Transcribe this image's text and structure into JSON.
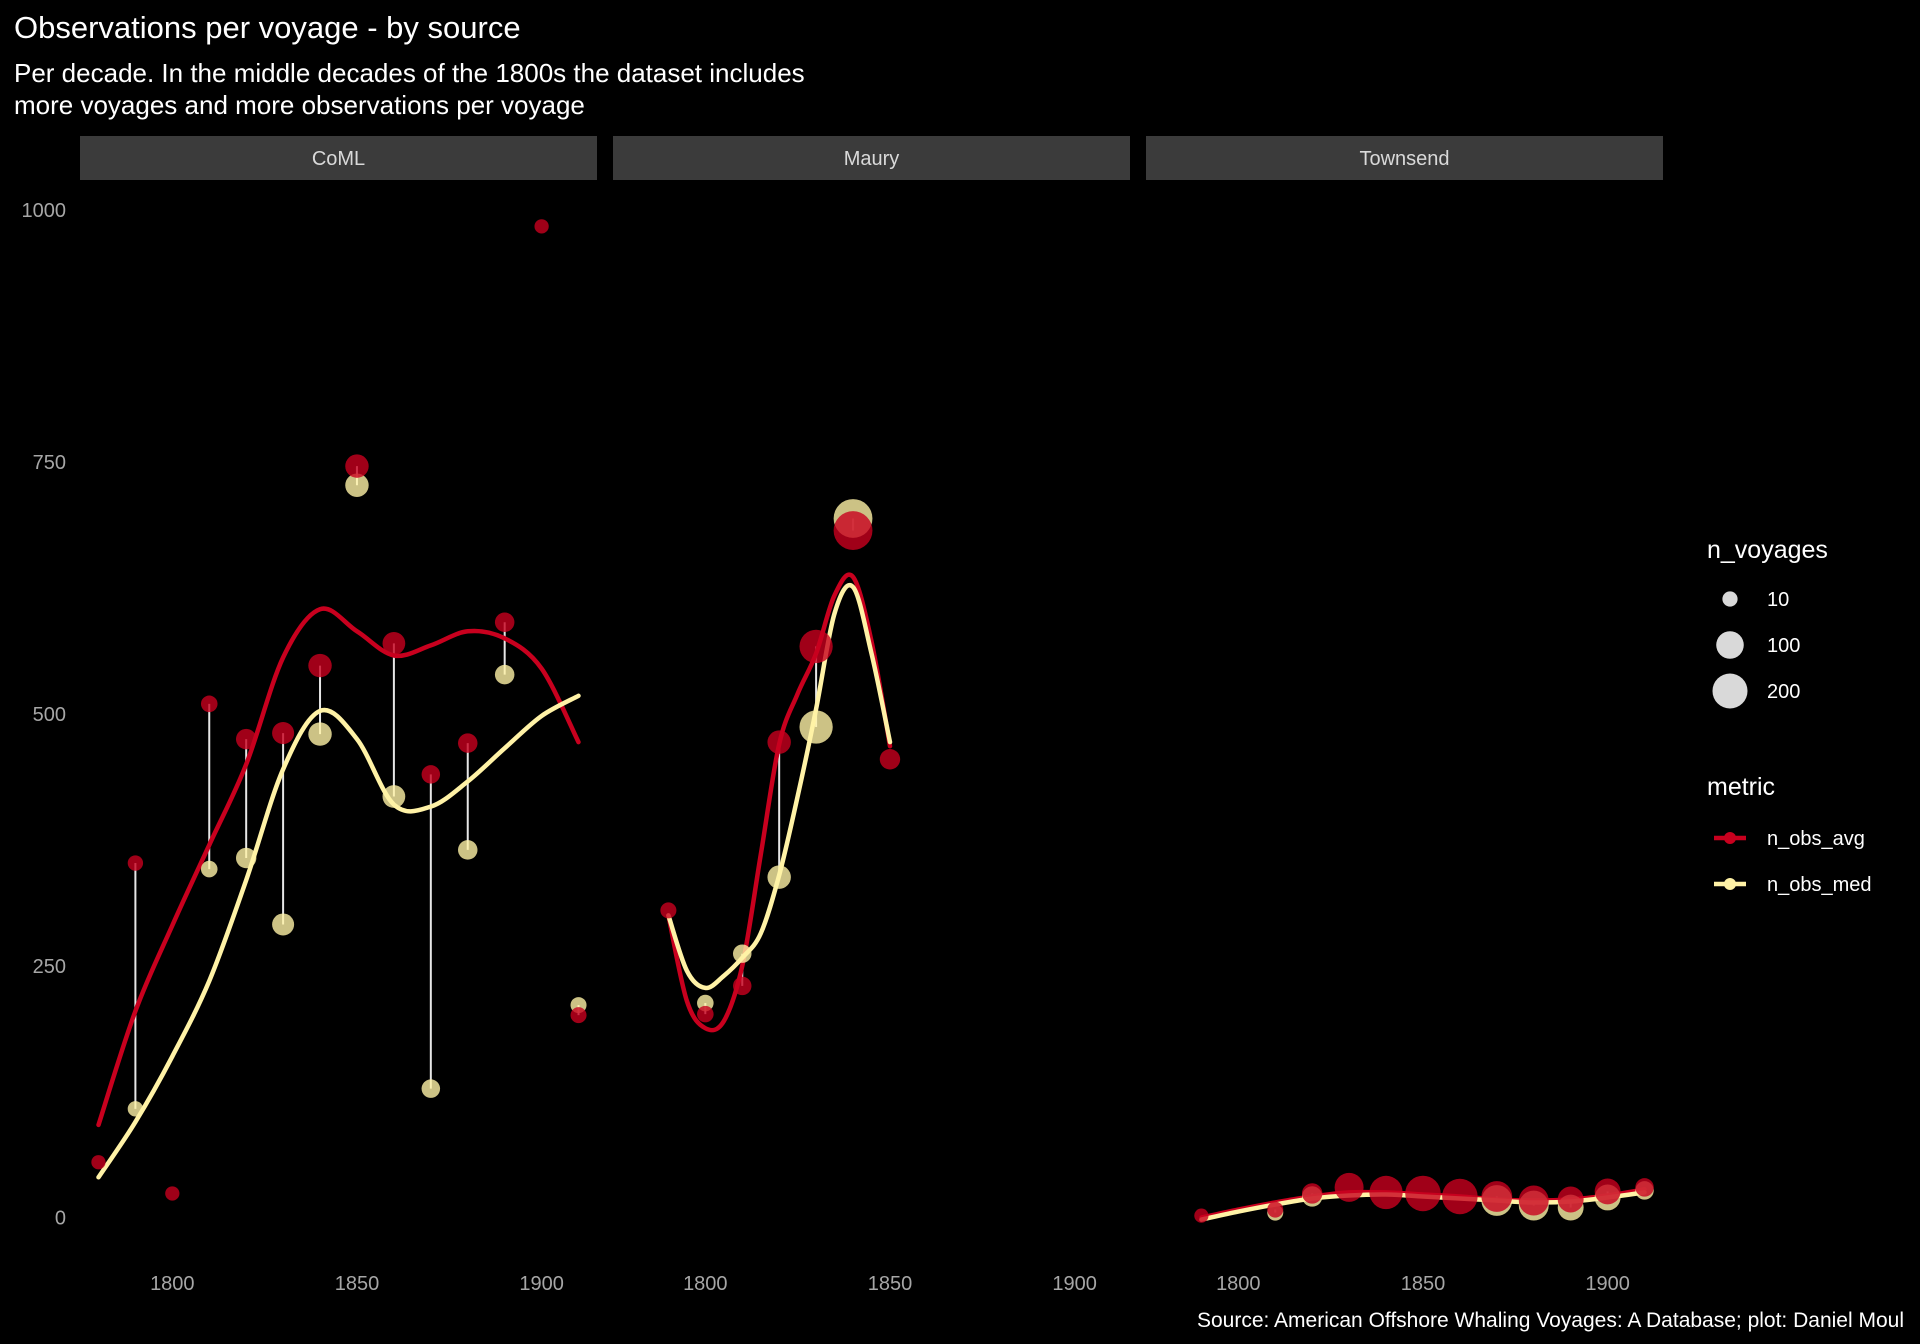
{
  "chart_data": {
    "type": "scatter",
    "title": "Observations per voyage - by source",
    "subtitle_lines": [
      "Per decade. In the middle decades of the 1800s the dataset includes",
      "more voyages and more observations per voyage"
    ],
    "caption": "Source: American Offshore Whaling Voyages: A Database; plot: Daniel Moul",
    "xlabel": "",
    "ylabel": "",
    "ylim": [
      -50,
      1030
    ],
    "y_ticks": [
      0,
      250,
      500,
      750,
      1000
    ],
    "colors": {
      "n_obs_avg": "#c8001e",
      "n_obs_med": "#fff2a6",
      "segment": "#e6e6e6",
      "strip_bg": "#3b3b3b",
      "background": "#000000"
    },
    "legend": {
      "size_title": "n_voyages",
      "size_entries": [
        {
          "label": "10",
          "value": 10
        },
        {
          "label": "100",
          "value": 100
        },
        {
          "label": "200",
          "value": 200
        }
      ],
      "color_title": "metric",
      "color_entries": [
        {
          "label": "n_obs_avg",
          "key": "n_obs_avg"
        },
        {
          "label": "n_obs_med",
          "key": "n_obs_med"
        }
      ]
    },
    "panels": [
      {
        "name": "CoML",
        "xlim": [
          1775,
          1915
        ],
        "x_ticks": [
          1800,
          1850,
          1900
        ],
        "points": [
          {
            "decade": 1780,
            "avg": 55,
            "med": null,
            "n": 5
          },
          {
            "decade": 1790,
            "avg": 352,
            "med": 108,
            "n": 8
          },
          {
            "decade": 1800,
            "avg": 24,
            "med": null,
            "n": 5
          },
          {
            "decade": 1810,
            "avg": 510,
            "med": 346,
            "n": 12
          },
          {
            "decade": 1820,
            "avg": 475,
            "med": 357,
            "n": 30
          },
          {
            "decade": 1830,
            "avg": 481,
            "med": 291,
            "n": 40
          },
          {
            "decade": 1840,
            "avg": 548,
            "med": 480,
            "n": 50
          },
          {
            "decade": 1850,
            "avg": 746,
            "med": 727,
            "n": 50
          },
          {
            "decade": 1860,
            "avg": 570,
            "med": 418,
            "n": 45
          },
          {
            "decade": 1870,
            "avg": 440,
            "med": 128,
            "n": 20
          },
          {
            "decade": 1880,
            "avg": 471,
            "med": 365,
            "n": 25
          },
          {
            "decade": 1890,
            "avg": 591,
            "med": 539,
            "n": 25
          },
          {
            "decade": 1900,
            "avg": 984,
            "med": null,
            "n": 5
          },
          {
            "decade": 1910,
            "avg": 201,
            "med": 211,
            "n": 10
          }
        ],
        "smooth_avg": [
          [
            1780,
            92
          ],
          [
            1790,
            205
          ],
          [
            1800,
            290
          ],
          [
            1810,
            370
          ],
          [
            1820,
            450
          ],
          [
            1830,
            556
          ],
          [
            1840,
            604
          ],
          [
            1850,
            582
          ],
          [
            1860,
            558
          ],
          [
            1870,
            568
          ],
          [
            1880,
            582
          ],
          [
            1890,
            575
          ],
          [
            1900,
            545
          ],
          [
            1910,
            472
          ]
        ],
        "smooth_med": [
          [
            1780,
            40
          ],
          [
            1790,
            95
          ],
          [
            1800,
            160
          ],
          [
            1810,
            235
          ],
          [
            1820,
            335
          ],
          [
            1830,
            445
          ],
          [
            1840,
            503
          ],
          [
            1850,
            475
          ],
          [
            1860,
            410
          ],
          [
            1870,
            408
          ],
          [
            1880,
            433
          ],
          [
            1890,
            466
          ],
          [
            1900,
            498
          ],
          [
            1910,
            518
          ]
        ]
      },
      {
        "name": "Maury",
        "xlim": [
          1775,
          1915
        ],
        "x_ticks": [
          1800,
          1850,
          1900
        ],
        "points": [
          {
            "decade": 1790,
            "avg": 305,
            "med": null,
            "n": 10
          },
          {
            "decade": 1800,
            "avg": 202,
            "med": 213,
            "n": 12
          },
          {
            "decade": 1810,
            "avg": 230,
            "med": 262,
            "n": 20
          },
          {
            "decade": 1820,
            "avg": 472,
            "med": 338,
            "n": 50
          },
          {
            "decade": 1830,
            "avg": 567,
            "med": 487,
            "n": 150
          },
          {
            "decade": 1840,
            "avg": 682,
            "med": 694,
            "n": 230
          },
          {
            "decade": 1850,
            "avg": 455,
            "med": null,
            "n": 30
          }
        ],
        "smooth_avg": [
          [
            1790,
            300
          ],
          [
            1795,
            215
          ],
          [
            1800,
            188
          ],
          [
            1805,
            195
          ],
          [
            1810,
            250
          ],
          [
            1815,
            360
          ],
          [
            1820,
            470
          ],
          [
            1825,
            520
          ],
          [
            1830,
            560
          ],
          [
            1835,
            618
          ],
          [
            1840,
            636
          ],
          [
            1845,
            572
          ],
          [
            1850,
            468
          ]
        ],
        "smooth_med": [
          [
            1790,
            300
          ],
          [
            1795,
            245
          ],
          [
            1800,
            228
          ],
          [
            1805,
            240
          ],
          [
            1810,
            258
          ],
          [
            1815,
            282
          ],
          [
            1820,
            340
          ],
          [
            1825,
            418
          ],
          [
            1830,
            505
          ],
          [
            1835,
            600
          ],
          [
            1840,
            626
          ],
          [
            1845,
            560
          ],
          [
            1850,
            472
          ]
        ]
      },
      {
        "name": "Townsend",
        "xlim": [
          1775,
          1915
        ],
        "x_ticks": [
          1800,
          1850,
          1900
        ],
        "points": [
          {
            "decade": 1790,
            "avg": 2,
            "med": null,
            "n": 5
          },
          {
            "decade": 1810,
            "avg": 8,
            "med": 5,
            "n": 10
          },
          {
            "decade": 1820,
            "avg": 24,
            "med": 21,
            "n": 30
          },
          {
            "decade": 1830,
            "avg": 30,
            "med": null,
            "n": 100
          },
          {
            "decade": 1840,
            "avg": 25,
            "med": null,
            "n": 150
          },
          {
            "decade": 1850,
            "avg": 24,
            "med": null,
            "n": 180
          },
          {
            "decade": 1860,
            "avg": 21,
            "med": null,
            "n": 180
          },
          {
            "decade": 1870,
            "avg": 21,
            "med": 17,
            "n": 120
          },
          {
            "decade": 1880,
            "avg": 17,
            "med": 12,
            "n": 110
          },
          {
            "decade": 1890,
            "avg": 18,
            "med": 10,
            "n": 70
          },
          {
            "decade": 1900,
            "avg": 26,
            "med": 20,
            "n": 70
          },
          {
            "decade": 1910,
            "avg": 30,
            "med": 27,
            "n": 20
          }
        ],
        "smooth_avg": [
          [
            1790,
            0
          ],
          [
            1800,
            8
          ],
          [
            1810,
            15
          ],
          [
            1820,
            21
          ],
          [
            1830,
            25
          ],
          [
            1840,
            25
          ],
          [
            1850,
            23
          ],
          [
            1860,
            21
          ],
          [
            1870,
            18
          ],
          [
            1880,
            17
          ],
          [
            1890,
            18
          ],
          [
            1900,
            22
          ],
          [
            1910,
            28
          ]
        ],
        "smooth_med": [
          [
            1790,
            -2
          ],
          [
            1800,
            6
          ],
          [
            1810,
            13
          ],
          [
            1820,
            19
          ],
          [
            1830,
            22
          ],
          [
            1840,
            23
          ],
          [
            1850,
            21
          ],
          [
            1860,
            19
          ],
          [
            1870,
            17
          ],
          [
            1880,
            15
          ],
          [
            1890,
            16
          ],
          [
            1900,
            20
          ],
          [
            1910,
            25
          ]
        ]
      }
    ]
  }
}
